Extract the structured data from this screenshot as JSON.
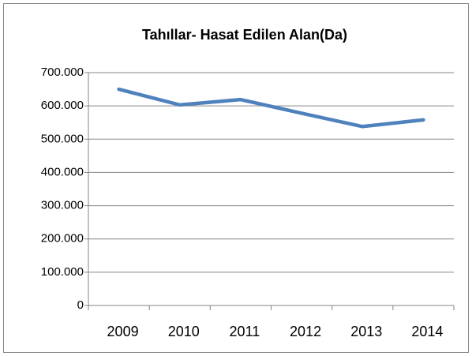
{
  "chart_data": {
    "type": "line",
    "title": "Tahıllar- Hasat Edilen Alan(Da)",
    "categories": [
      "2009",
      "2010",
      "2011",
      "2012",
      "2013",
      "2014"
    ],
    "series": [
      {
        "name": "Tahıllar",
        "color": "#4f81bd",
        "values": [
          650000,
          603000,
          619000,
          578000,
          538000,
          558000
        ]
      }
    ],
    "ylim": [
      0,
      700000
    ],
    "yticks": [
      0,
      {
        "value": 100000,
        "label": "100.000"
      },
      {
        "value": 200000,
        "label": "200.000"
      },
      {
        "value": 300000,
        "label": "300.000"
      },
      {
        "value": 400000,
        "label": "400.000"
      },
      {
        "value": 500000,
        "label": "500.000"
      },
      {
        "value": 600000,
        "label": "600.000"
      },
      {
        "value": 700000,
        "label": "700.000"
      }
    ],
    "grid": true
  }
}
